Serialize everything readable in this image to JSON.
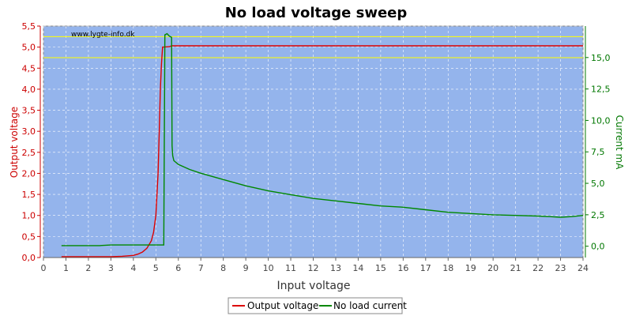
{
  "chart_data": {
    "type": "line",
    "title": "No load voltage sweep",
    "watermark": "www.lygte-info.dk",
    "xlabel": "Input voltage",
    "ylabel_left": "Output voltage",
    "ylabel_right": "Current mA",
    "xlim": [
      0,
      24
    ],
    "ylim_left": [
      0,
      5.5
    ],
    "ylim_right": [
      -0.9,
      17.5
    ],
    "x_ticks": [
      "0",
      "1",
      "2",
      "3",
      "4",
      "5",
      "6",
      "7",
      "8",
      "9",
      "10",
      "11",
      "12",
      "13",
      "14",
      "15",
      "16",
      "17",
      "18",
      "19",
      "20",
      "21",
      "22",
      "23",
      "24"
    ],
    "y_left_ticks": [
      "0,0",
      "0,5",
      "1,0",
      "1,5",
      "2,0",
      "2,5",
      "3,0",
      "3,5",
      "4,0",
      "4,5",
      "5,0",
      "5,5"
    ],
    "y_right_ticks": [
      "0,0",
      "2,5",
      "5,0",
      "7,5",
      "10,0",
      "12,5",
      "15,0"
    ],
    "reference_lines_left": [
      4.75,
      5.25
    ],
    "grid": true,
    "legend_position": "bottom",
    "colors": {
      "plot_bg": "#94b4ec",
      "grid": "#ffffff",
      "reference": "#ffff00",
      "left_axis": "#cc0000",
      "right_axis": "#007700",
      "output_voltage": "#dd0000",
      "no_load_current": "#008800"
    },
    "series": [
      {
        "name": "Output voltage",
        "axis": "left",
        "x": [
          0.8,
          2.0,
          3.0,
          3.5,
          4.0,
          4.2,
          4.4,
          4.6,
          4.8,
          4.9,
          5.0,
          5.05,
          5.1,
          5.15,
          5.2,
          5.25,
          5.3,
          5.35,
          5.6,
          5.7,
          6.0,
          10,
          15,
          20,
          24
        ],
        "y": [
          0.02,
          0.02,
          0.02,
          0.03,
          0.05,
          0.08,
          0.13,
          0.22,
          0.4,
          0.6,
          1.0,
          1.5,
          2.0,
          3.0,
          4.0,
          4.6,
          5.0,
          5.0,
          5.01,
          5.03,
          5.03,
          5.03,
          5.03,
          5.03,
          5.03
        ]
      },
      {
        "name": "No load current",
        "axis": "right",
        "x": [
          0.8,
          2.5,
          3.0,
          4.0,
          5.0,
          5.35,
          5.4,
          5.5,
          5.6,
          5.7,
          5.72,
          5.75,
          5.8,
          6.0,
          6.5,
          7.0,
          8.0,
          9.0,
          10.0,
          11.0,
          12.0,
          13.0,
          14.0,
          15.0,
          16.0,
          17.0,
          18.0,
          19.0,
          20.0,
          21.0,
          22.0,
          22.5,
          23.0,
          23.5,
          24.0
        ],
        "y": [
          0.05,
          0.05,
          0.1,
          0.1,
          0.1,
          0.1,
          16.8,
          16.9,
          16.7,
          16.6,
          8.0,
          7.2,
          6.8,
          6.5,
          6.1,
          5.8,
          5.3,
          4.8,
          4.4,
          4.1,
          3.8,
          3.6,
          3.4,
          3.2,
          3.1,
          2.9,
          2.7,
          2.6,
          2.5,
          2.45,
          2.4,
          2.35,
          2.3,
          2.35,
          2.45
        ]
      }
    ]
  }
}
